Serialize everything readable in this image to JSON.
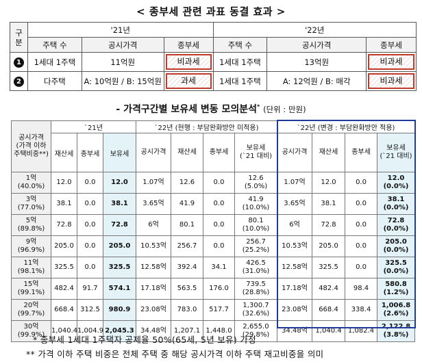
{
  "title1": "< 종부세 관련 과표 동결 효과 >",
  "t1": {
    "gubun": "구\n분",
    "y21": "'21년",
    "y22": "'22년",
    "cols": [
      "주택 수",
      "공시가격",
      "종부세"
    ],
    "rows": [
      {
        "num": "1",
        "c21": [
          "1세대 1주택",
          "11억원",
          "비과세"
        ],
        "c22": [
          "1세대 1주택",
          "13억원",
          "비과세"
        ]
      },
      {
        "num": "2",
        "c21": [
          "다주택",
          "A: 10억원 / B: 15억원",
          "과세"
        ],
        "c22": [
          "1세대 1주택",
          "A: 12억원 / B: 매각",
          "비과세"
        ]
      }
    ]
  },
  "title2": {
    "main": "- 가격구간별 보유세 변동 모의분석",
    "sup": "*",
    "unit": "(단위 : 만원)"
  },
  "t2": {
    "g21": "`21년",
    "g22a": "`22년 (현행 : 부담완화방안 미적용)",
    "g22b": "`22년 (변경 : 부담완화방안 적용)",
    "rowhead": "공시가격\n(가격 이하\n주택비중**)",
    "cols21": [
      "재산세",
      "종부세",
      "보유세"
    ],
    "colsA": [
      "공시가격",
      "재산세",
      "종부세",
      "보유세\n(`21 대비)"
    ],
    "colsB": [
      "공시가격",
      "재산세",
      "종부세",
      "보유세\n(`21 대비)"
    ],
    "rows": [
      {
        "label": "1억\n(40.0%)",
        "r21": [
          "12.0",
          "0.0",
          "12.0"
        ],
        "a": [
          "1.07억",
          "12.6",
          "0.0",
          "12.6\n(5.0%)"
        ],
        "b": [
          "1.07억",
          "12.0",
          "0.0",
          "12.0\n(0.0%)"
        ]
      },
      {
        "label": "3억\n(77.0%)",
        "r21": [
          "38.1",
          "0.0",
          "38.1"
        ],
        "a": [
          "3.65억",
          "41.9",
          "0.0",
          "41.9\n(10.0%)"
        ],
        "b": [
          "3.65억",
          "38.1",
          "0.0",
          "38.1\n(0.0%)"
        ]
      },
      {
        "label": "5억\n(89.8%)",
        "r21": [
          "72.8",
          "0.0",
          "72.8"
        ],
        "a": [
          "6억",
          "80.1",
          "0.0",
          "80.1\n(10.0%)"
        ],
        "b": [
          "6억",
          "72.8",
          "0.0",
          "72.8\n(0.0%)"
        ]
      },
      {
        "label": "9억\n(96.9%)",
        "r21": [
          "205.0",
          "0.0",
          "205.0"
        ],
        "a": [
          "10.53억",
          "256.7",
          "0.0",
          "256.7\n(25.2%)"
        ],
        "b": [
          "10.53억",
          "205.0",
          "0.0",
          "205.0\n(0.0%)"
        ]
      },
      {
        "label": "11억\n(98.1%)",
        "r21": [
          "325.5",
          "0.0",
          "325.5"
        ],
        "a": [
          "12.58억",
          "392.4",
          "34.1",
          "426.5\n(31.0%)"
        ],
        "b": [
          "12.58억",
          "325.5",
          "0.0",
          "325.5\n(0.0%)"
        ]
      },
      {
        "label": "15억\n(99.1%)",
        "r21": [
          "482.4",
          "91.7",
          "574.1"
        ],
        "a": [
          "17.18억",
          "563.5",
          "176.0",
          "739.5\n(28.8%)"
        ],
        "b": [
          "17.18억",
          "482.4",
          "98.4",
          "580.8\n(1.2%)"
        ]
      },
      {
        "label": "20억\n(99.7%)",
        "r21": [
          "668.4",
          "312.5",
          "980.9"
        ],
        "a": [
          "23.08억",
          "783.0",
          "517.7",
          "1,300.7\n(32.6%)"
        ],
        "b": [
          "23.08억",
          "668.4",
          "338.4",
          "1,006.8\n(2.6%)"
        ]
      },
      {
        "label": "30억\n(99.9%)",
        "r21": [
          "1,040.4",
          "1,004.9",
          "2,045.3"
        ],
        "a": [
          "34.48억",
          "1,207.1",
          "1,448.0",
          "2,655.0\n(29.8%)"
        ],
        "b": [
          "34.48억",
          "1,040.4",
          "1,082.4",
          "2,122.8\n(3.8%)"
        ]
      }
    ]
  },
  "notes": [
    "* 종부세 1세대 1주택자 공제율 50%(65세, 5년 보유) 가정",
    "** 가격 이하 주택 비중은 전체 주택 중 해당 공시가격 이하 주택 재고비중을 의미"
  ]
}
